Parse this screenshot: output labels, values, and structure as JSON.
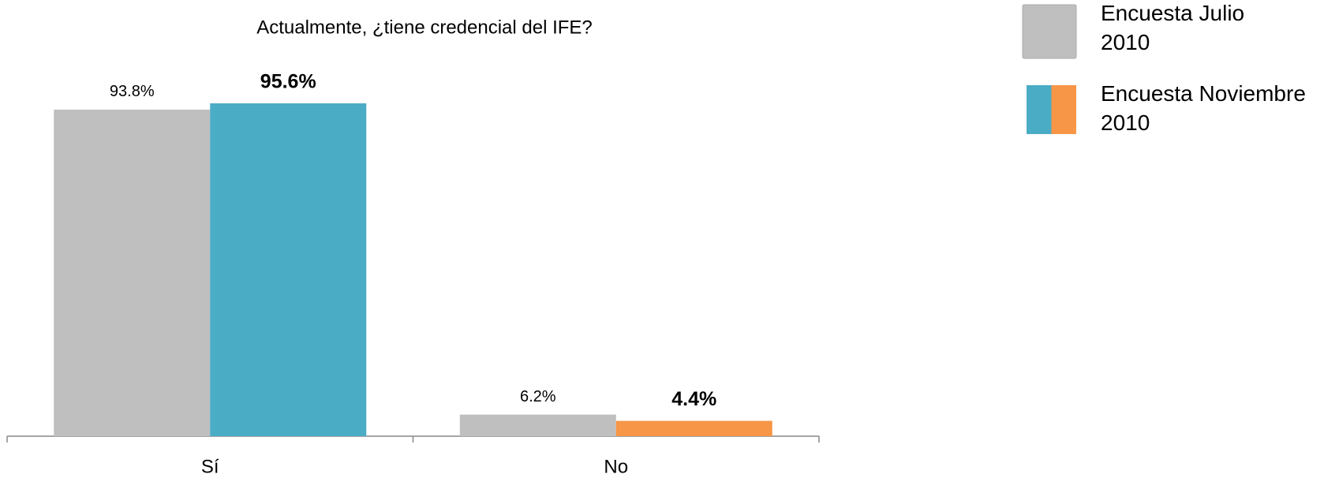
{
  "chart_data": {
    "type": "bar",
    "title": "Actualmente, ¿tiene credencial del IFE?",
    "categories": [
      "Sí",
      "No"
    ],
    "series": [
      {
        "name": "Encuesta Julio 2010",
        "color": "#bfbfbf",
        "values": [
          93.8,
          6.2
        ],
        "value_labels": [
          "93.8%",
          "6.2%"
        ]
      },
      {
        "name": "Encuesta Noviembre 2010",
        "colors": [
          "#4bacc6",
          "#f79646"
        ],
        "values": [
          95.6,
          4.4
        ],
        "value_labels": [
          "95.6%",
          "4.4%"
        ]
      }
    ],
    "legend": "top-right"
  }
}
